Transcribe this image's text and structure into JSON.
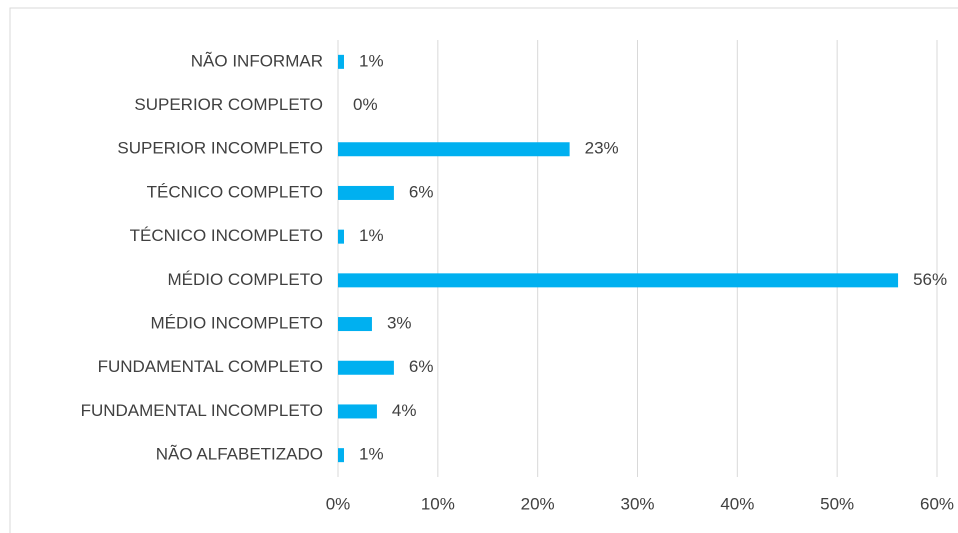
{
  "chart_data": {
    "type": "barh",
    "categories": [
      "NÃO INFORMAR",
      "SUPERIOR COMPLETO",
      "SUPERIOR INCOMPLETO",
      "TÉCNICO COMPLETO",
      "TÉCNICO INCOMPLETO",
      "MÉDIO COMPLETO",
      "MÉDIO INCOMPLETO",
      "FUNDAMENTAL COMPLETO",
      "FUNDAMENTAL INCOMPLETO",
      "NÃO ALFABETIZADO"
    ],
    "values": [
      0.6,
      0,
      23.2,
      5.6,
      0.6,
      56.1,
      3.4,
      5.6,
      3.9,
      0.6
    ],
    "value_labels": [
      "1%",
      "0%",
      "23%",
      "6%",
      "1%",
      "56%",
      "3%",
      "6%",
      "4%",
      "1%"
    ],
    "color": "#00b0f0",
    "xlim": [
      0,
      60
    ],
    "xticks": [
      {
        "value": 0,
        "label": "0%"
      },
      {
        "value": 10,
        "label": "10%"
      },
      {
        "value": 20,
        "label": "20%"
      },
      {
        "value": 30,
        "label": "30%"
      },
      {
        "value": 40,
        "label": "40%"
      },
      {
        "value": 50,
        "label": "50%"
      },
      {
        "value": 60,
        "label": "60%"
      }
    ],
    "grid": true
  }
}
